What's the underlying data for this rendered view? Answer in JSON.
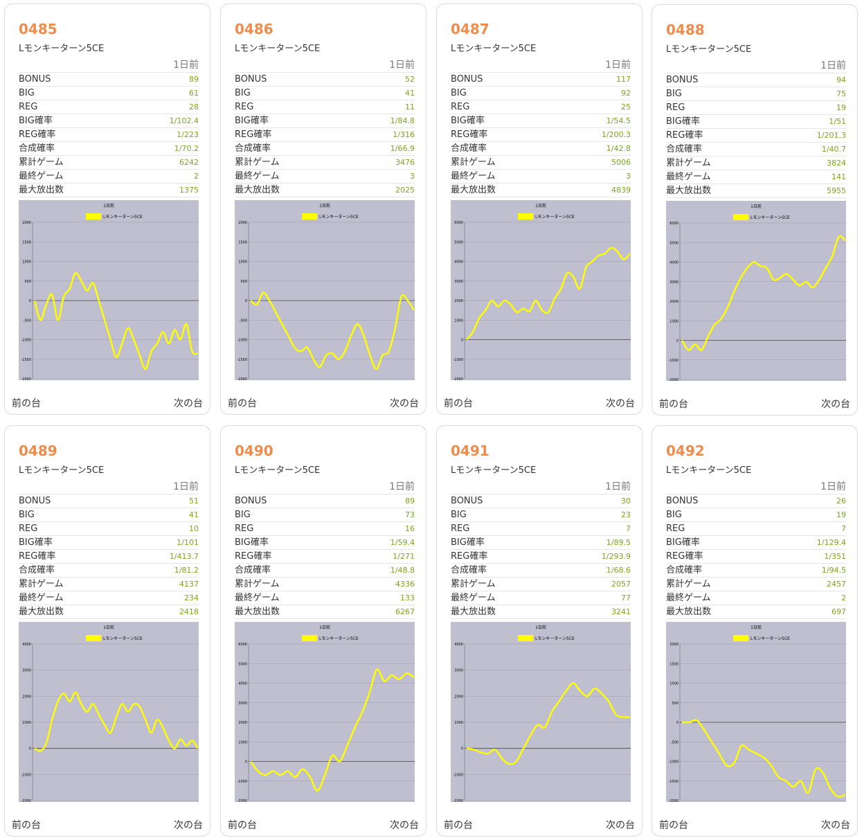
{
  "colors": {
    "accent": "#f08c4b",
    "value": "#7ba41c",
    "line": "#ffff00",
    "plot_bg": "#c0bfd0"
  },
  "labels": {
    "day": "1日前",
    "rows": [
      "BONUS",
      "BIG",
      "REG",
      "BIG確率",
      "REG確率",
      "合成確率",
      "累計ゲーム",
      "最終ゲーム",
      "最大放出数"
    ],
    "prev": "前の台",
    "next": "次の台"
  },
  "machines": [
    {
      "id": "0485",
      "model": "Lモンキーターン5CE",
      "values": [
        "89",
        "61",
        "28",
        "1/102.4",
        "1/223",
        "1/70.2",
        "6242",
        "2",
        "1375"
      ]
    },
    {
      "id": "0486",
      "model": "Lモンキーターン5CE",
      "values": [
        "52",
        "41",
        "11",
        "1/84.8",
        "1/316",
        "1/66.9",
        "3476",
        "3",
        "2025"
      ]
    },
    {
      "id": "0487",
      "model": "Lモンキーターン5CE",
      "values": [
        "117",
        "92",
        "25",
        "1/54.5",
        "1/200.3",
        "1/42.8",
        "5006",
        "3",
        "4839"
      ]
    },
    {
      "id": "0488",
      "model": "Lモンキーターン5CE",
      "values": [
        "94",
        "75",
        "19",
        "1/51",
        "1/201.3",
        "1/40.7",
        "3824",
        "141",
        "5955"
      ]
    },
    {
      "id": "0489",
      "model": "Lモンキーターン5CE",
      "values": [
        "51",
        "41",
        "10",
        "1/101",
        "1/413.7",
        "1/81.2",
        "4137",
        "234",
        "2418"
      ]
    },
    {
      "id": "0490",
      "model": "Lモンキーターン5CE",
      "values": [
        "89",
        "73",
        "16",
        "1/59.4",
        "1/271",
        "1/48.8",
        "4336",
        "133",
        "6267"
      ]
    },
    {
      "id": "0491",
      "model": "Lモンキーターン5CE",
      "values": [
        "30",
        "23",
        "7",
        "1/89.5",
        "1/293.9",
        "1/68.6",
        "2057",
        "77",
        "3241"
      ]
    },
    {
      "id": "0492",
      "model": "Lモンキーターン5CE",
      "values": [
        "26",
        "19",
        "7",
        "1/129.4",
        "1/351",
        "1/94.5",
        "2457",
        "2",
        "697"
      ]
    }
  ],
  "chart_data": [
    {
      "type": "line",
      "title": "1日前",
      "series": [
        {
          "name": "Lモンキーターン5CE",
          "values": [
            0,
            -500,
            -100,
            150,
            -500,
            100,
            300,
            700,
            500,
            250,
            450,
            0,
            -500,
            -1000,
            -1450,
            -1100,
            -700,
            -1000,
            -1400,
            -1750,
            -1300,
            -1100,
            -800,
            -1100,
            -750,
            -1000,
            -600,
            -1300,
            -1350
          ]
        }
      ],
      "ylim": [
        -2000,
        2000
      ],
      "yticks": [
        -2000,
        -1500,
        -1000,
        -500,
        0,
        500,
        1000,
        1500,
        2000
      ]
    },
    {
      "type": "line",
      "title": "1日前",
      "series": [
        {
          "name": "Lモンキーターン5CE",
          "values": [
            0,
            -100,
            200,
            0,
            -300,
            -600,
            -900,
            -1200,
            -1300,
            -1200,
            -1500,
            -1700,
            -1400,
            -1350,
            -1500,
            -1300,
            -900,
            -600,
            -900,
            -1400,
            -1750,
            -1400,
            -1300,
            -700,
            100,
            0,
            -250
          ]
        }
      ],
      "ylim": [
        -2000,
        2000
      ],
      "yticks": [
        -2000,
        -1500,
        -1000,
        -500,
        0,
        500,
        1000,
        1500,
        2000
      ]
    },
    {
      "type": "line",
      "title": "1日前",
      "series": [
        {
          "name": "Lモンキーターン5CE",
          "values": [
            0,
            400,
            1100,
            1500,
            2000,
            1700,
            2000,
            1800,
            1400,
            1600,
            1450,
            2000,
            1500,
            1400,
            2100,
            2600,
            3400,
            3200,
            2600,
            3700,
            4000,
            4300,
            4400,
            4700,
            4500,
            4100,
            4400
          ]
        }
      ],
      "ylim": [
        -2000,
        6000
      ],
      "yticks": [
        -2000,
        -1000,
        0,
        1000,
        2000,
        3000,
        4000,
        5000,
        6000
      ]
    },
    {
      "type": "line",
      "title": "1日前",
      "series": [
        {
          "name": "Lモンキーターン5CE",
          "values": [
            0,
            -500,
            -200,
            -500,
            200,
            800,
            1100,
            1700,
            2500,
            3200,
            3700,
            4000,
            3800,
            3700,
            3100,
            3200,
            3400,
            3100,
            2800,
            3000,
            2700,
            3100,
            3700,
            4300,
            5300,
            5100
          ]
        }
      ],
      "ylim": [
        -2000,
        6000
      ],
      "yticks": [
        -2000,
        -1000,
        0,
        1000,
        2000,
        3000,
        4000,
        5000,
        6000
      ]
    },
    {
      "type": "line",
      "title": "1日前",
      "series": [
        {
          "name": "Lモンキーターン5CE",
          "values": [
            0,
            -100,
            200,
            1100,
            1800,
            2100,
            1800,
            2150,
            1700,
            1400,
            1700,
            1300,
            900,
            600,
            1200,
            1700,
            1400,
            1700,
            1600,
            1100,
            600,
            1100,
            800,
            300,
            0,
            350,
            100,
            300,
            0
          ]
        }
      ],
      "ylim": [
        -2000,
        4000
      ],
      "yticks": [
        -2000,
        -1000,
        0,
        1000,
        2000,
        3000,
        4000
      ]
    },
    {
      "type": "line",
      "title": "1日前",
      "series": [
        {
          "name": "Lモンキーターン5CE",
          "values": [
            0,
            -500,
            -700,
            -500,
            -700,
            -500,
            -800,
            -400,
            -800,
            -1500,
            -700,
            300,
            0,
            800,
            1700,
            2500,
            3500,
            4700,
            4100,
            4400,
            4200,
            4500,
            4300
          ]
        }
      ],
      "ylim": [
        -2000,
        6000
      ],
      "yticks": [
        -2000,
        -1000,
        0,
        1000,
        2000,
        3000,
        4000,
        5000,
        6000
      ]
    },
    {
      "type": "line",
      "title": "1日前",
      "series": [
        {
          "name": "Lモンキーターン5CE",
          "values": [
            0,
            -50,
            -150,
            -200,
            -50,
            -400,
            -600,
            -500,
            0,
            500,
            900,
            800,
            1400,
            1800,
            2200,
            2500,
            2200,
            2000,
            2300,
            2100,
            1800,
            1300,
            1200,
            1200
          ]
        }
      ],
      "ylim": [
        -2000,
        4000
      ],
      "yticks": [
        -2000,
        -1000,
        0,
        1000,
        2000,
        3000,
        4000
      ]
    },
    {
      "type": "line",
      "title": "1日前",
      "series": [
        {
          "name": "Lモンキーターン5CE",
          "values": [
            0,
            0,
            50,
            -200,
            -500,
            -800,
            -1100,
            -1050,
            -600,
            -700,
            -800,
            -900,
            -1100,
            -1400,
            -1500,
            -1650,
            -1500,
            -1800,
            -1200,
            -1300,
            -1700,
            -1900,
            -1850
          ]
        }
      ],
      "ylim": [
        -2000,
        2000
      ],
      "yticks": [
        -2000,
        -1500,
        -1000,
        -500,
        0,
        500,
        1000,
        1500,
        2000
      ]
    }
  ]
}
